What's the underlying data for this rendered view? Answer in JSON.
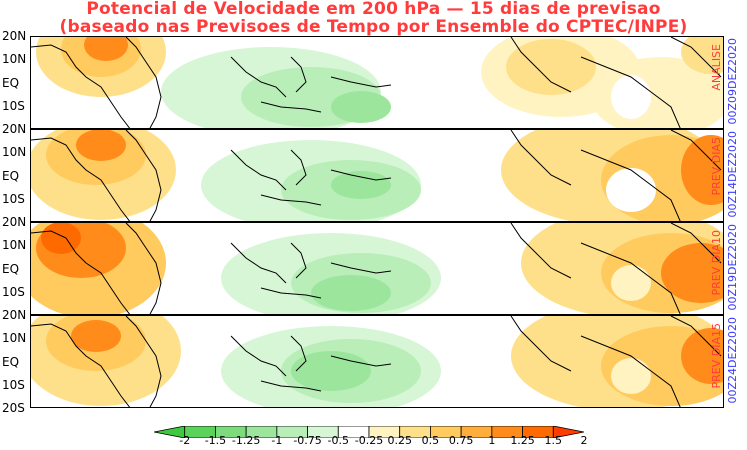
{
  "title": {
    "line1": "Potencial de Velocidade em 200 hPa — 15 dias de previsao",
    "line2": "(baseado nas Previsoes de Tempo por Ensemble do CPTEC/INPE)"
  },
  "lat_labels": [
    "20N",
    "10N",
    "EQ",
    "10S",
    "20S"
  ],
  "panels": [
    {
      "label": "ANALISE",
      "date": "00Z09DEZ2020"
    },
    {
      "label": "PREV DIA5",
      "date": "00Z14DEZ2020"
    },
    {
      "label": "PREV DIA10",
      "date": "00Z19DEZ2020"
    },
    {
      "label": "PREV DIA15",
      "date": "00Z24DEZ2020"
    }
  ],
  "colorbar": {
    "labels": [
      "-2",
      "-1.5",
      "-1.25",
      "-1",
      "-0.75",
      "-0.5",
      "-0.25",
      "0.25",
      "0.5",
      "0.75",
      "1",
      "1.25",
      "1.5",
      "2"
    ],
    "colors": [
      "#3fc93f",
      "#5bd35b",
      "#7cdc7c",
      "#9ce59c",
      "#b9eeb9",
      "#d6f6d6",
      "#ffffff",
      "#fff3c2",
      "#ffe08a",
      "#ffca5e",
      "#ffae3c",
      "#ff8c1a",
      "#ff6a00",
      "#ff3c00"
    ]
  },
  "colors": {
    "title": "#ff3b3b",
    "tag_red": "#ff3b3b",
    "tag_blue": "#3a3aff"
  }
}
